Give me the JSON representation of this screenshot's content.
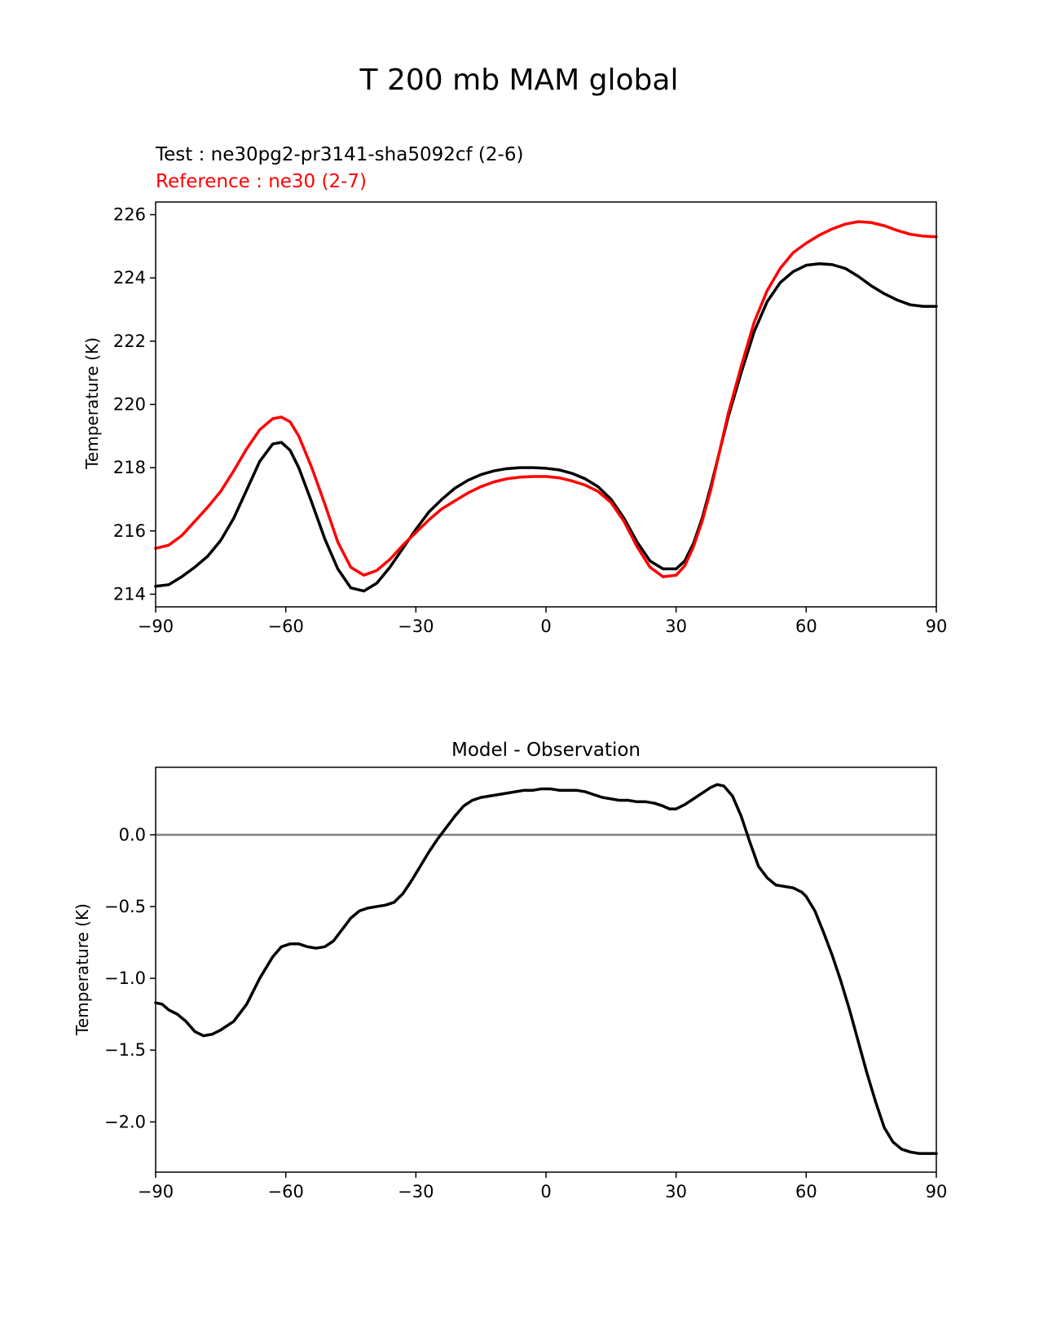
{
  "figure_title": "T 200 mb MAM global",
  "chart_data": [
    {
      "type": "line",
      "title": "",
      "legend_text": [
        {
          "text": "Test : ne30pg2-pr3141-sha5092cf (2-6)",
          "color": "#000000"
        },
        {
          "text": "Reference : ne30 (2-7)",
          "color": "#ff0000"
        }
      ],
      "xlabel": "",
      "ylabel": "Temperature (K)",
      "xlim": [
        -90,
        90
      ],
      "ylim": [
        213.6,
        226.4
      ],
      "xticks": [
        -90,
        -60,
        -30,
        0,
        30,
        60,
        90
      ],
      "xtick_labels": [
        "−90",
        "−60",
        "−30",
        "0",
        "30",
        "60",
        "90"
      ],
      "yticks": [
        214,
        216,
        218,
        220,
        222,
        224,
        226
      ],
      "ytick_labels": [
        "214",
        "216",
        "218",
        "220",
        "222",
        "224",
        "226"
      ],
      "grid": false,
      "series": [
        {
          "name": "Test",
          "color": "#000000",
          "x": [
            -90,
            -87,
            -84,
            -81,
            -78,
            -75,
            -72,
            -69,
            -66,
            -63,
            -61,
            -59,
            -57,
            -54,
            -51,
            -48,
            -45,
            -42,
            -39,
            -36,
            -33,
            -30,
            -27,
            -24,
            -21,
            -18,
            -15,
            -12,
            -9,
            -6,
            -3,
            0,
            3,
            6,
            9,
            12,
            15,
            18,
            21,
            24,
            27,
            30,
            32,
            34,
            36,
            38,
            40,
            42,
            45,
            48,
            51,
            54,
            57,
            60,
            63,
            66,
            69,
            72,
            75,
            78,
            81,
            84,
            87,
            90
          ],
          "y": [
            214.25,
            214.3,
            214.55,
            214.85,
            215.2,
            215.7,
            216.4,
            217.3,
            218.2,
            218.75,
            218.8,
            218.55,
            218.0,
            216.9,
            215.75,
            214.8,
            214.2,
            214.1,
            214.35,
            214.85,
            215.45,
            216.05,
            216.6,
            217.0,
            217.35,
            217.6,
            217.78,
            217.9,
            217.97,
            218.0,
            218.0,
            217.98,
            217.93,
            217.82,
            217.65,
            217.4,
            217.0,
            216.4,
            215.65,
            215.05,
            214.8,
            214.8,
            215.05,
            215.6,
            216.4,
            217.4,
            218.5,
            219.6,
            221.0,
            222.3,
            223.25,
            223.85,
            224.2,
            224.4,
            224.45,
            224.42,
            224.3,
            224.05,
            223.75,
            223.5,
            223.3,
            223.15,
            223.1,
            223.1
          ]
        },
        {
          "name": "Reference",
          "color": "#ff0000",
          "x": [
            -90,
            -87,
            -84,
            -81,
            -78,
            -75,
            -72,
            -69,
            -66,
            -63,
            -61,
            -59,
            -57,
            -54,
            -51,
            -48,
            -45,
            -42,
            -39,
            -36,
            -33,
            -30,
            -27,
            -24,
            -21,
            -18,
            -15,
            -12,
            -9,
            -6,
            -3,
            0,
            3,
            6,
            9,
            12,
            15,
            18,
            21,
            24,
            27,
            30,
            32,
            34,
            36,
            38,
            40,
            42,
            45,
            48,
            51,
            54,
            57,
            60,
            63,
            66,
            69,
            72,
            75,
            78,
            81,
            84,
            87,
            90
          ],
          "y": [
            215.45,
            215.55,
            215.85,
            216.3,
            216.75,
            217.25,
            217.9,
            218.6,
            219.2,
            219.55,
            219.6,
            219.45,
            219.0,
            218.0,
            216.85,
            215.65,
            214.85,
            214.6,
            214.75,
            215.1,
            215.55,
            215.95,
            216.35,
            216.7,
            216.95,
            217.2,
            217.4,
            217.55,
            217.65,
            217.7,
            217.72,
            217.72,
            217.68,
            217.58,
            217.45,
            217.25,
            216.9,
            216.3,
            215.5,
            214.85,
            214.55,
            214.6,
            214.9,
            215.5,
            216.3,
            217.3,
            218.5,
            219.7,
            221.2,
            222.6,
            223.6,
            224.3,
            224.8,
            225.1,
            225.35,
            225.55,
            225.7,
            225.78,
            225.75,
            225.65,
            225.5,
            225.38,
            225.32,
            225.3
          ]
        }
      ]
    },
    {
      "type": "line",
      "title": "Model - Observation",
      "xlabel": "",
      "ylabel": "Temperature (K)",
      "xlim": [
        -90,
        90
      ],
      "ylim": [
        -2.35,
        0.47
      ],
      "xticks": [
        -90,
        -60,
        -30,
        0,
        30,
        60,
        90
      ],
      "xtick_labels": [
        "−90",
        "−60",
        "−30",
        "0",
        "30",
        "60",
        "90"
      ],
      "yticks": [
        0.0,
        -0.5,
        -1.0,
        -1.5,
        -2.0
      ],
      "ytick_labels": [
        "0.0",
        "−0.5",
        "−1.0",
        "−1.5",
        "−2.0"
      ],
      "grid": false,
      "zero_line": {
        "value": 0,
        "color": "#808080"
      },
      "series": [
        {
          "name": "Model - Observation",
          "color": "#000000",
          "x": [
            -90,
            -88.5,
            -87,
            -85,
            -83,
            -81,
            -79,
            -77,
            -75,
            -72,
            -69,
            -66,
            -63,
            -61,
            -59,
            -57,
            -55,
            -53,
            -51,
            -49,
            -47,
            -45,
            -43,
            -41,
            -39,
            -37,
            -35,
            -33,
            -31,
            -29,
            -27,
            -25,
            -23,
            -21,
            -19,
            -17,
            -15,
            -13,
            -11,
            -9,
            -7,
            -5,
            -3,
            -1,
            1,
            3,
            5,
            7,
            9,
            11,
            13,
            15,
            17,
            19,
            21,
            23,
            25,
            27,
            28.5,
            30,
            32,
            34,
            36,
            38,
            39.5,
            41,
            43,
            45,
            47,
            49,
            51,
            53,
            55,
            57,
            59,
            60,
            62,
            64,
            66,
            68,
            70,
            72,
            74,
            76,
            78,
            80,
            82,
            84,
            86,
            88,
            90
          ],
          "y": [
            -1.17,
            -1.18,
            -1.22,
            -1.25,
            -1.3,
            -1.37,
            -1.4,
            -1.39,
            -1.36,
            -1.3,
            -1.18,
            -1.0,
            -0.85,
            -0.78,
            -0.76,
            -0.76,
            -0.78,
            -0.79,
            -0.78,
            -0.74,
            -0.66,
            -0.58,
            -0.53,
            -0.51,
            -0.5,
            -0.49,
            -0.47,
            -0.41,
            -0.32,
            -0.22,
            -0.12,
            -0.03,
            0.05,
            0.13,
            0.2,
            0.24,
            0.26,
            0.27,
            0.28,
            0.29,
            0.3,
            0.31,
            0.31,
            0.32,
            0.32,
            0.31,
            0.31,
            0.31,
            0.3,
            0.28,
            0.26,
            0.25,
            0.24,
            0.24,
            0.23,
            0.23,
            0.22,
            0.2,
            0.18,
            0.18,
            0.21,
            0.25,
            0.29,
            0.33,
            0.35,
            0.34,
            0.27,
            0.13,
            -0.05,
            -0.22,
            -0.3,
            -0.35,
            -0.36,
            -0.37,
            -0.4,
            -0.43,
            -0.53,
            -0.68,
            -0.84,
            -1.02,
            -1.22,
            -1.44,
            -1.66,
            -1.86,
            -2.04,
            -2.14,
            -2.19,
            -2.21,
            -2.22,
            -2.22,
            -2.22
          ]
        }
      ]
    }
  ]
}
